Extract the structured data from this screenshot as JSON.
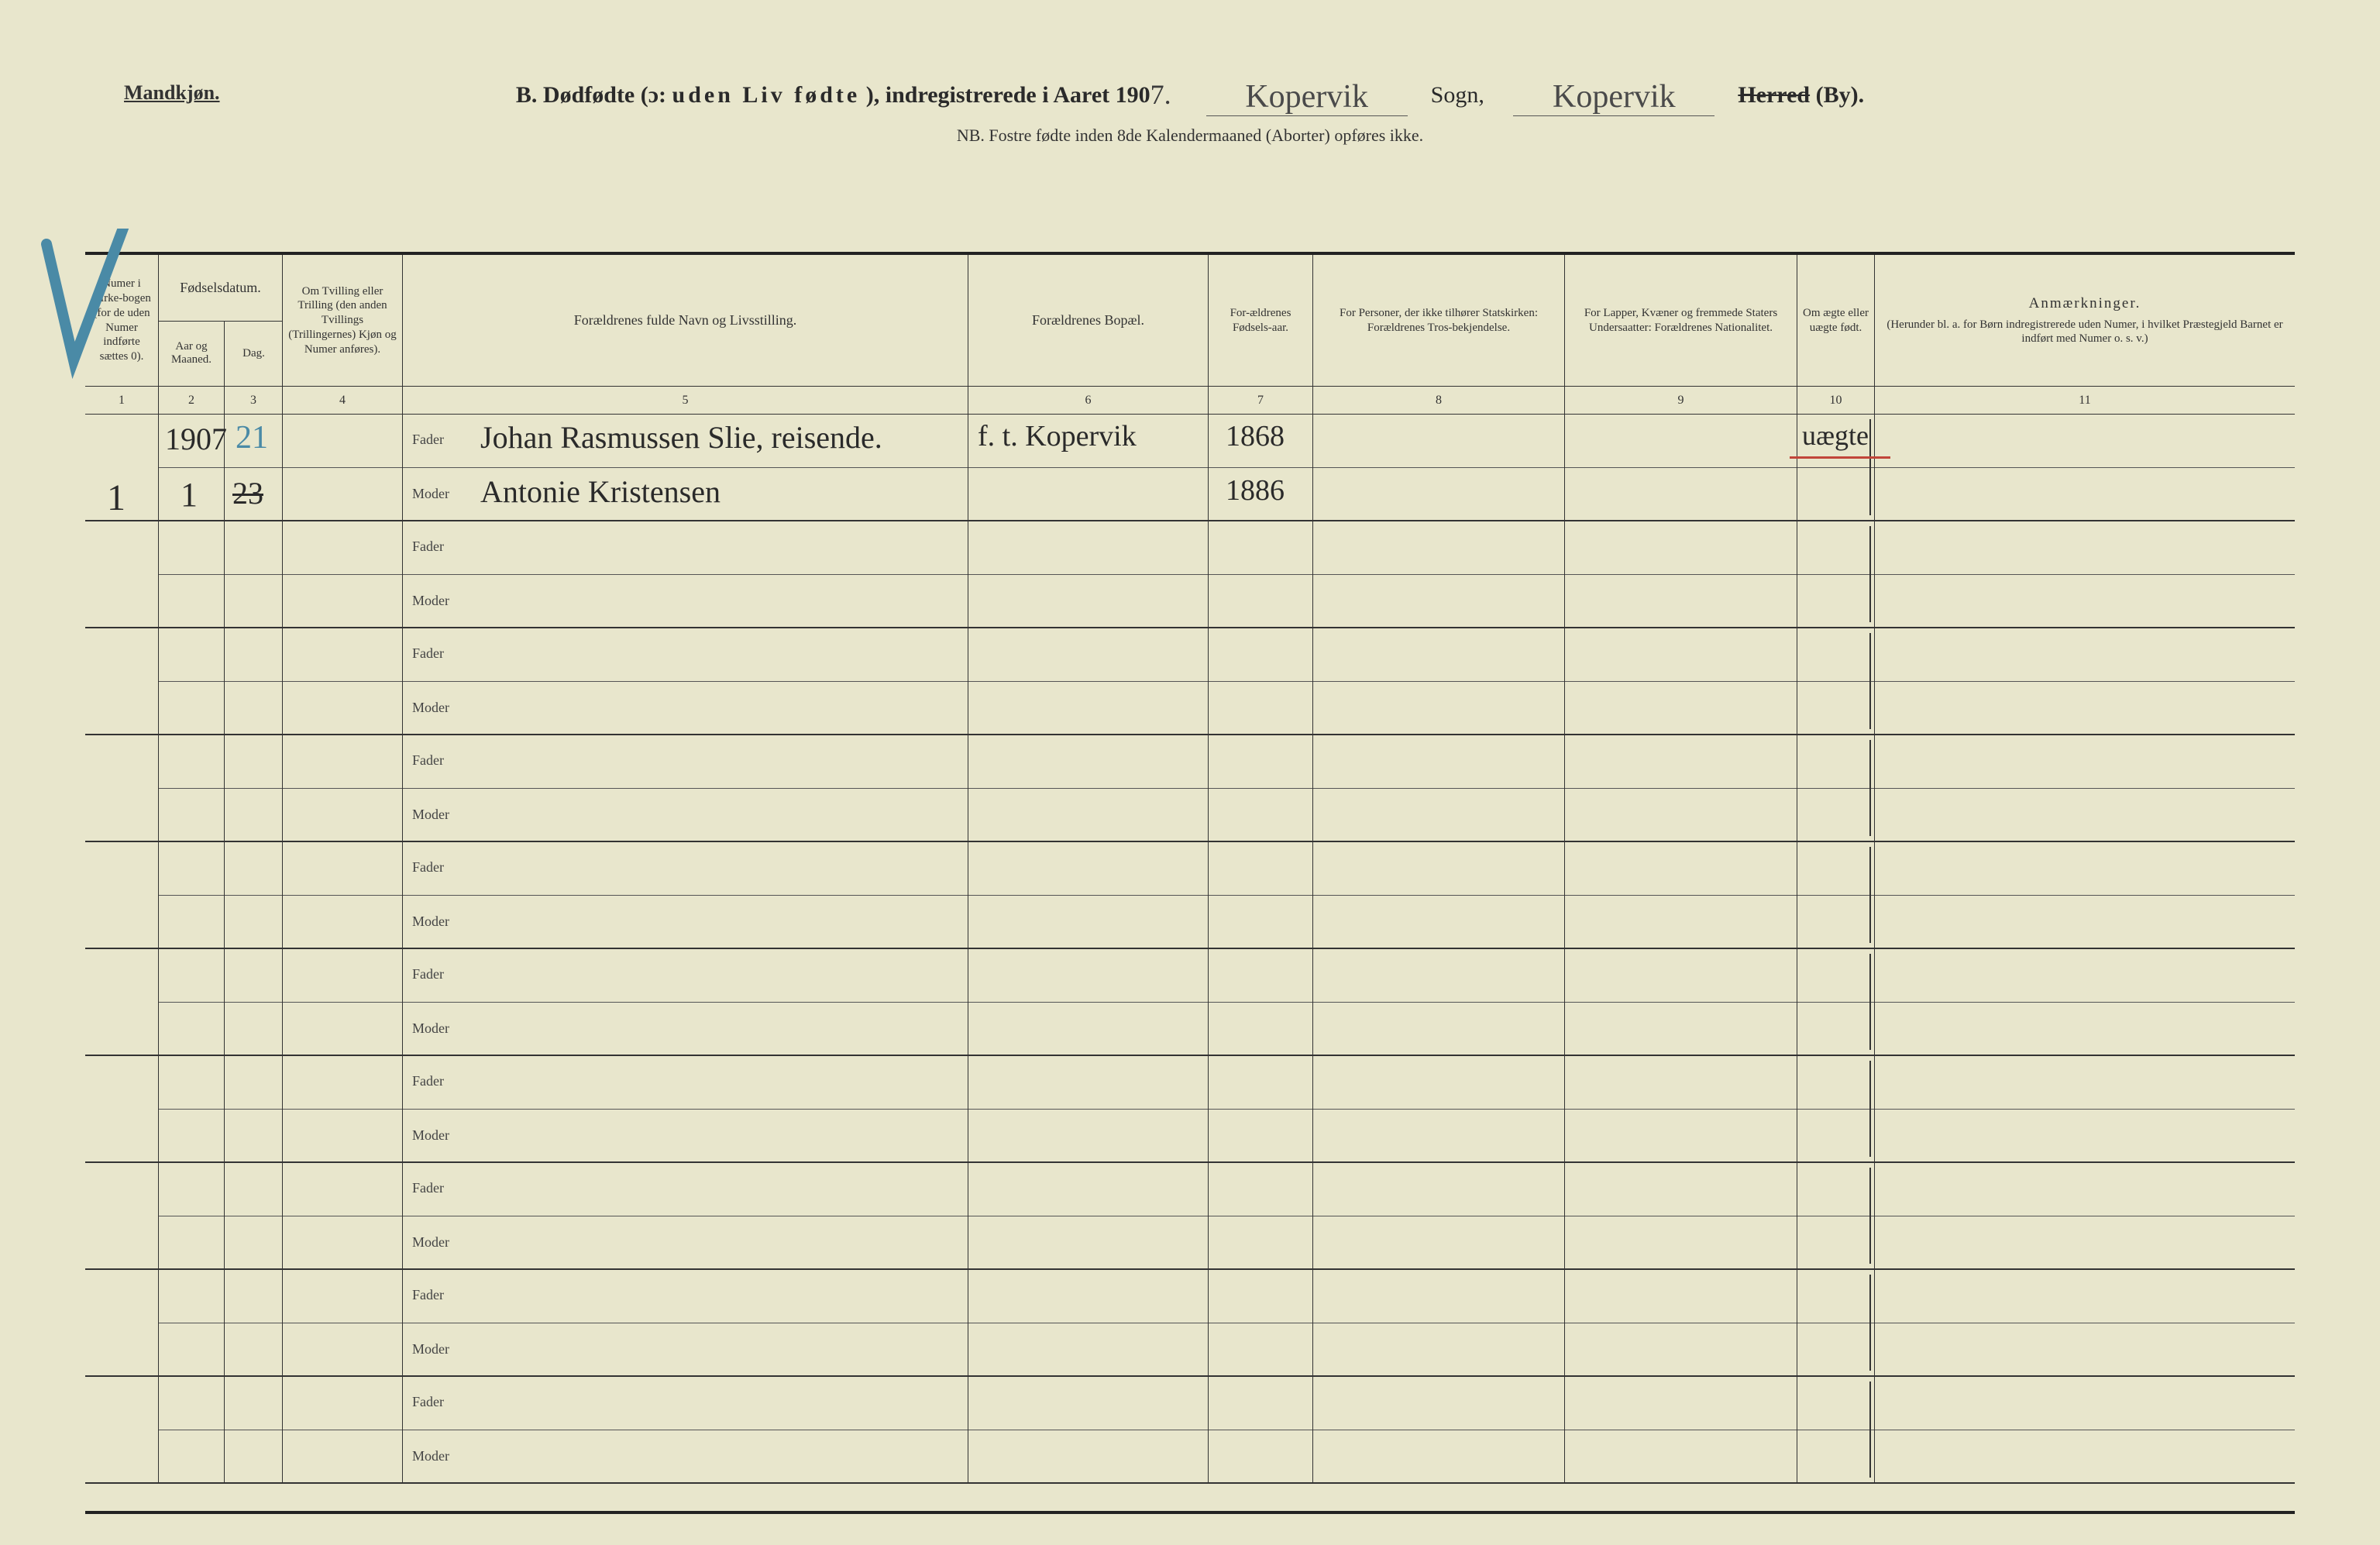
{
  "page": {
    "corner": "Mandkjøn.",
    "title_prefix": "B.  Dødfødte (ɔ: ",
    "title_spaced": "uden Liv fødte",
    "title_mid": "), indregistrerede i Aaret 190",
    "year_digit": "7.",
    "sogn_hand": "Kopervik",
    "sogn_label": "Sogn,",
    "herred_hand": "Kopervik",
    "herred_strike": "Herred",
    "herred_tail": " (By).",
    "subtitle": "NB.  Fostre fødte inden 8de Kalendermaaned (Aborter) opføres ikke."
  },
  "headers": {
    "c1": "Numer i Kirke-bogen (for de uden Numer indførte sættes 0).",
    "c2": "Fødselsdatum.",
    "c2a": "Aar og Maaned.",
    "c2b": "Dag.",
    "c3": "Om Tvilling eller Trilling (den anden Tvillings (Trillingernes) Kjøn og Numer anføres).",
    "c5": "Forældrenes fulde Navn og Livsstilling.",
    "c6": "Forældrenes Bopæl.",
    "c7": "For-ældrenes Fødsels-aar.",
    "c8": "For Personer, der ikke tilhører Statskirken: Forældrenes Tros-bekjendelse.",
    "c9": "For Lapper, Kvæner og fremmede Staters Undersaatter: Forældrenes Nationalitet.",
    "c10": "Om ægte eller uægte født.",
    "c11": "Anmærkninger.",
    "c11_sub": "(Herunder bl. a. for Børn indregistrerede uden Numer, i hvilket Præstegjeld Barnet er indført med Numer o. s. v.)"
  },
  "colnums": [
    "1",
    "2",
    "3",
    "4",
    "5",
    "6",
    "7",
    "8",
    "9",
    "10",
    "11"
  ],
  "labels": {
    "fader": "Fader",
    "moder": "Moder"
  },
  "entry": {
    "kirkebok_num": "1",
    "aar": "1907",
    "maaned": "1",
    "dag_blue": "21",
    "dag_strike": "23",
    "fader_navn": "Johan Rasmussen Slie, reisende.",
    "moder_navn": "Antonie Kristensen",
    "bopael": "f. t. Kopervik",
    "fader_aar": "1868",
    "moder_aar": "1886",
    "aegte": "uægte"
  },
  "empty_rows": 9,
  "colors": {
    "paper": "#e8e6cc",
    "ink": "#2a2a2a",
    "rule": "#333333",
    "blue_pencil": "#4a8aa6",
    "red": "#c1453a"
  }
}
